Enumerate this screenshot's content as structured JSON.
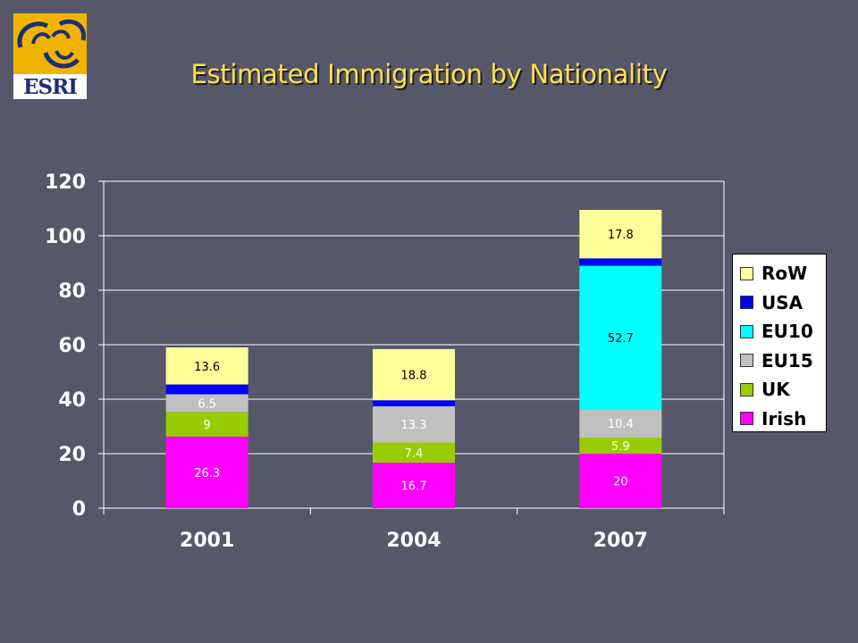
{
  "logo": {
    "text": "ESRI"
  },
  "title": "Estimated Immigration by Nationality",
  "chart_data": {
    "type": "bar",
    "stacked": true,
    "categories": [
      "2001",
      "2004",
      "2007"
    ],
    "ylim": [
      0,
      120
    ],
    "yticks": [
      0,
      20,
      40,
      60,
      80,
      100,
      120
    ],
    "grid": true,
    "legend_position": "right",
    "series": [
      {
        "name": "Irish",
        "color": "#ff00ff",
        "label_color": "#ffffff",
        "values": [
          26.3,
          16.7,
          20
        ],
        "labels": [
          "26.3",
          "16.7",
          "20"
        ]
      },
      {
        "name": "UK",
        "color": "#99cc00",
        "label_color": "#ffffff",
        "values": [
          9,
          7.4,
          5.9
        ],
        "labels": [
          "9",
          "7.4",
          "5.9"
        ]
      },
      {
        "name": "EU15",
        "color": "#c0c0c0",
        "label_color": "#ffffff",
        "values": [
          6.5,
          13.3,
          10.4
        ],
        "labels": [
          "6.5",
          "13.3",
          "10.4"
        ]
      },
      {
        "name": "EU10",
        "color": "#00ffff",
        "label_color": "#000000",
        "values": [
          0,
          0,
          52.7
        ],
        "labels": [
          "",
          "",
          "52.7"
        ]
      },
      {
        "name": "USA",
        "color": "#0000ff",
        "label_color": "#ffffff",
        "values": [
          3.6,
          2.2,
          2.7
        ],
        "labels": [
          "",
          "",
          ""
        ]
      },
      {
        "name": "RoW",
        "color": "#ffff99",
        "label_color": "#000000",
        "values": [
          13.6,
          18.8,
          17.8
        ],
        "labels": [
          "13.6",
          "18.8",
          "17.8"
        ]
      }
    ]
  }
}
